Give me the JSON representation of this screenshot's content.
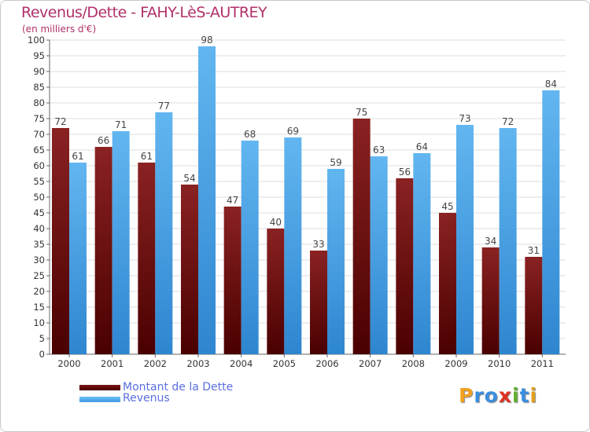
{
  "title": "Revenus/Dette - FAHY-LèS-AUTREY",
  "subtitle": "(en milliers d'€)",
  "legend": [
    {
      "label": "Montant de la Dette",
      "color": "#6a0d0d"
    },
    {
      "label": "Revenus",
      "color": "#4aa8ea"
    }
  ],
  "logo": {
    "letters": [
      "P",
      "r",
      "o",
      "x",
      "i",
      "t",
      "i"
    ],
    "colors": [
      "#f0a020",
      "#3a8ee0",
      "#3a8ee0",
      "#e03020",
      "#60b030",
      "#3a8ee0",
      "#e0a020"
    ]
  },
  "chart_data": {
    "type": "bar",
    "categories": [
      "2000",
      "2001",
      "2002",
      "2003",
      "2004",
      "2005",
      "2006",
      "2007",
      "2008",
      "2009",
      "2010",
      "2011"
    ],
    "series": [
      {
        "name": "Montant de la Dette",
        "values": [
          72,
          66,
          61,
          54,
          47,
          40,
          33,
          75,
          56,
          45,
          34,
          31
        ],
        "color": "#6a0d0d"
      },
      {
        "name": "Revenus",
        "values": [
          61,
          71,
          77,
          98,
          68,
          69,
          59,
          63,
          64,
          73,
          72,
          84
        ],
        "color": "#4aa8ea"
      }
    ],
    "ylim": [
      0,
      100
    ],
    "ytick_step": 5,
    "grid": true
  }
}
